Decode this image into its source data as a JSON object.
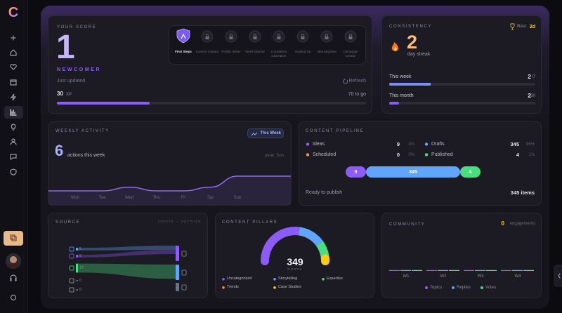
{
  "sidebar": {
    "logo": "C"
  },
  "score": {
    "title": "YOUR SCORE",
    "value": 1,
    "level": "NEWCOMER",
    "status": "Just updated",
    "refresh": "Refresh",
    "xp": 30,
    "xp_unit": "XP",
    "remaining": {
      "value": 70,
      "label": "70 to go"
    },
    "badges": [
      {
        "name": "First Steps",
        "unlocked": true
      },
      {
        "name": "Content Creator",
        "unlocked": false
      },
      {
        "name": "Prolific Writer",
        "unlocked": false
      },
      {
        "name": "Week Warrior",
        "unlocked": false
      },
      {
        "name": "Consistent Champion",
        "unlocked": false
      },
      {
        "name": "Hooked Up",
        "unlocked": false
      },
      {
        "name": "Idea Machine",
        "unlocked": false
      },
      {
        "name": "Campaign Creator",
        "unlocked": false
      }
    ]
  },
  "consistency": {
    "title": "CONSISTENCY",
    "best_label": "Best",
    "best": "2d",
    "streak": 2,
    "streak_label": "day streak",
    "periods": [
      {
        "label": "This week",
        "value": 2,
        "total": {
          "value": 7,
          "label": "/7"
        }
      },
      {
        "label": "This month",
        "value": 2,
        "total": {
          "value": 30,
          "label": "/30"
        }
      }
    ]
  },
  "weekly": {
    "title": "WEEKLY ACTIVITY",
    "filter": "This Week",
    "total": 6,
    "total_label": "actions this week",
    "peak": "peak: Sun",
    "chart_data": {
      "type": "line",
      "categories": [
        "Mon",
        "Tue",
        "Wed",
        "Thu",
        "Fri",
        "Sat",
        "Sun"
      ],
      "values": [
        0,
        0,
        1,
        0,
        0,
        1,
        4
      ],
      "color": "#8b6cf0",
      "ylim": [
        0,
        4
      ]
    }
  },
  "pipeline": {
    "title": "CONTENT PIPELINE",
    "stages": [
      {
        "name": "Ideas",
        "value": 9,
        "share": 3,
        "share_label": "3%",
        "color": "#8b5cf6"
      },
      {
        "name": "Drafts",
        "value": 345,
        "share": 96,
        "share_label": "96%",
        "color": "#60a5fa"
      },
      {
        "name": "Scheduled",
        "value": 0,
        "share": 0,
        "share_label": "0%",
        "color": "#fb923c"
      },
      {
        "name": "Published",
        "value": 4,
        "share": 1,
        "share_label": "1%",
        "color": "#4ade80"
      }
    ],
    "ready_label": "Ready to publish",
    "ready_count": "345 items"
  },
  "source": {
    "title": "SOURCE",
    "subtitle": "INPUTS → OUTPUTS",
    "inputs": [
      {
        "value": 5,
        "color": "#60a5fa"
      },
      {
        "value": 5,
        "color": "#8b5cf6"
      },
      {
        "value": 17,
        "color": "#4ade80"
      },
      {
        "value": 0,
        "color": "#9ca3af"
      },
      {
        "value": 0,
        "color": "#9ca3af"
      }
    ],
    "outputs": [
      {
        "color": "#8b5cf6"
      },
      {
        "color": "#60a5fa"
      },
      {
        "color": "#6b7280"
      }
    ]
  },
  "pillars": {
    "title": "CONTENT PILLARS",
    "total": 349,
    "total_label": "POSTS",
    "chart_data": {
      "type": "pie",
      "segments": [
        {
          "name": "Uncategorized",
          "value": 190,
          "color": "#8b5cf6"
        },
        {
          "name": "Storytelling",
          "value": 90,
          "color": "#60a5fa"
        },
        {
          "name": "Expertise",
          "value": 50,
          "color": "#4ade80"
        },
        {
          "name": "Trends",
          "value": 10,
          "color": "#fb923c"
        },
        {
          "name": "Case Studies",
          "value": 9,
          "color": "#facc15"
        }
      ]
    }
  },
  "community": {
    "title": "COMMUNITY",
    "total": 0,
    "total_label": "engagements",
    "chart_data": {
      "type": "bar",
      "categories": [
        "W1",
        "W2",
        "W3",
        "W4"
      ],
      "series": [
        {
          "name": "Topics",
          "color": "#8b5cf6",
          "values": [
            0,
            0,
            0,
            0
          ]
        },
        {
          "name": "Replies",
          "color": "#60a5fa",
          "values": [
            0,
            0,
            0,
            0
          ]
        },
        {
          "name": "Votes",
          "color": "#4ade80",
          "values": [
            0,
            0,
            0,
            0
          ]
        }
      ]
    }
  }
}
